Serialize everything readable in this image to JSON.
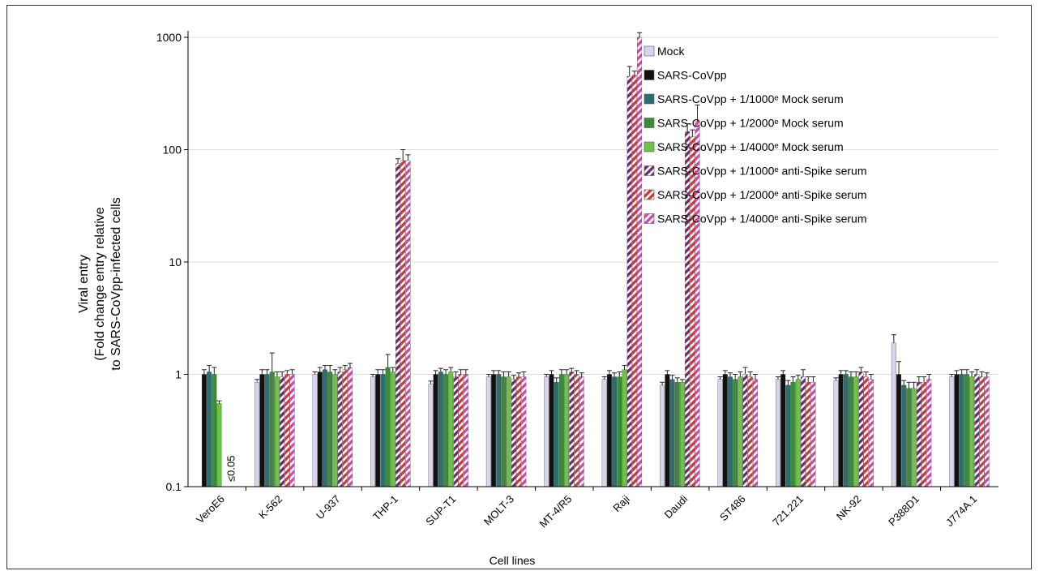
{
  "chart_data": {
    "type": "bar",
    "yscale": "log",
    "ylim": [
      0.1,
      1000
    ],
    "yticks": [
      "0.1",
      "1",
      "10",
      "100",
      "1000"
    ],
    "ylabel_lines": [
      "Viral entry",
      "(Fold change entry relative",
      "to SARS-CoVpp-infected cells"
    ],
    "xlabel": "Cell lines",
    "grid": true,
    "legend_position": "top-right",
    "categories": [
      "VeroE6",
      "K-562",
      "U-937",
      "THP-1",
      "SUP-T1",
      "MOLT-3",
      "MT-4/R5",
      "Raji",
      "Daudi",
      "ST486",
      "721.221",
      "NK-92",
      "P388D1",
      "J774A.1"
    ],
    "series": [
      {
        "name": "Mock",
        "color": "#d8d4ea",
        "pattern": "solid",
        "values": [
          null,
          0.85,
          1.0,
          0.95,
          0.82,
          0.95,
          0.95,
          0.9,
          0.8,
          0.9,
          0.9,
          0.88,
          1.9,
          0.95
        ],
        "errors": [
          null,
          0.05,
          0.05,
          0.05,
          0.05,
          0.05,
          0.05,
          0.05,
          0.05,
          0.05,
          0.05,
          0.05,
          0.35,
          0.05
        ]
      },
      {
        "name": "SARS-CoVpp",
        "color": "#111111",
        "pattern": "solid",
        "values": [
          1.0,
          1.0,
          1.05,
          1.0,
          1.0,
          1.0,
          1.0,
          1.0,
          1.0,
          1.0,
          1.0,
          1.0,
          1.0,
          1.0
        ],
        "errors": [
          0.1,
          0.1,
          0.1,
          0.1,
          0.08,
          0.08,
          0.08,
          0.08,
          0.08,
          0.08,
          0.08,
          0.08,
          0.3,
          0.08
        ]
      },
      {
        "name": "SARS-CoVpp + 1/1000ᵉ Mock serum",
        "color": "#2d6e6e",
        "pattern": "solid",
        "values": [
          1.05,
          1.0,
          1.1,
          1.0,
          1.05,
          1.0,
          0.85,
          0.95,
          0.9,
          0.95,
          0.8,
          1.0,
          0.8,
          1.0
        ],
        "errors": [
          0.15,
          0.1,
          0.1,
          0.1,
          0.08,
          0.08,
          0.08,
          0.08,
          0.08,
          0.08,
          0.08,
          0.08,
          0.08,
          0.1
        ]
      },
      {
        "name": "SARS-CoVpp + 1/2000ᵉ Mock serum",
        "color": "#3c8a3c",
        "pattern": "solid",
        "values": [
          1.0,
          1.05,
          1.05,
          1.15,
          1.0,
          0.95,
          1.0,
          0.95,
          0.85,
          0.9,
          0.85,
          0.95,
          0.75,
          1.0
        ],
        "errors": [
          0.15,
          0.5,
          0.15,
          0.35,
          0.1,
          0.1,
          0.1,
          0.1,
          0.08,
          0.1,
          0.1,
          0.1,
          0.1,
          0.1
        ]
      },
      {
        "name": "SARS-CoVpp + 1/4000ᵉ Mock serum",
        "color": "#6ec24a",
        "pattern": "solid",
        "values": [
          0.55,
          0.95,
          1.0,
          1.05,
          1.05,
          0.95,
          1.0,
          1.1,
          0.85,
          0.95,
          0.9,
          0.95,
          0.75,
          0.95
        ],
        "errors": [
          0.03,
          0.1,
          0.1,
          0.1,
          0.1,
          0.1,
          0.1,
          0.1,
          0.05,
          0.1,
          0.08,
          0.1,
          0.1,
          0.1
        ]
      },
      {
        "name": "SARS-CoVpp + 1/1000ᵉ anti-Spike serum",
        "color": "#6e2e6e",
        "pattern": "diag",
        "values": [
          null,
          0.95,
          1.05,
          75,
          0.95,
          0.9,
          1.05,
          450,
          145,
          1.0,
          0.95,
          1.05,
          0.85,
          1.0
        ],
        "errors": [
          null,
          0.1,
          0.1,
          8,
          0.1,
          0.08,
          0.08,
          100,
          25,
          0.15,
          0.15,
          0.1,
          0.1,
          0.1
        ]
      },
      {
        "name": "SARS-CoVpp + 1/2000ᵉ anti-Spike serum",
        "color": "#d03838",
        "pattern": "diag",
        "values": [
          null,
          1.0,
          1.1,
          80,
          1.0,
          0.95,
          1.0,
          460,
          130,
          0.95,
          0.85,
          0.95,
          0.85,
          0.95
        ],
        "errors": [
          null,
          0.08,
          0.1,
          20,
          0.1,
          0.08,
          0.08,
          40,
          20,
          0.1,
          0.1,
          0.1,
          0.1,
          0.1
        ]
      },
      {
        "name": "SARS-CoVpp + 1/4000ᵉ anti-Spike serum",
        "color": "#cc4aaa",
        "pattern": "diag",
        "values": [
          null,
          1.0,
          1.15,
          80,
          1.0,
          0.95,
          0.95,
          1000,
          180,
          0.9,
          0.85,
          0.9,
          0.9,
          0.95
        ],
        "errors": [
          null,
          0.1,
          0.1,
          10,
          0.1,
          0.1,
          0.08,
          100,
          70,
          0.1,
          0.1,
          0.1,
          0.1,
          0.08
        ]
      }
    ],
    "annotations": [
      {
        "category": "VeroE6",
        "text": "≤0.05"
      }
    ]
  }
}
